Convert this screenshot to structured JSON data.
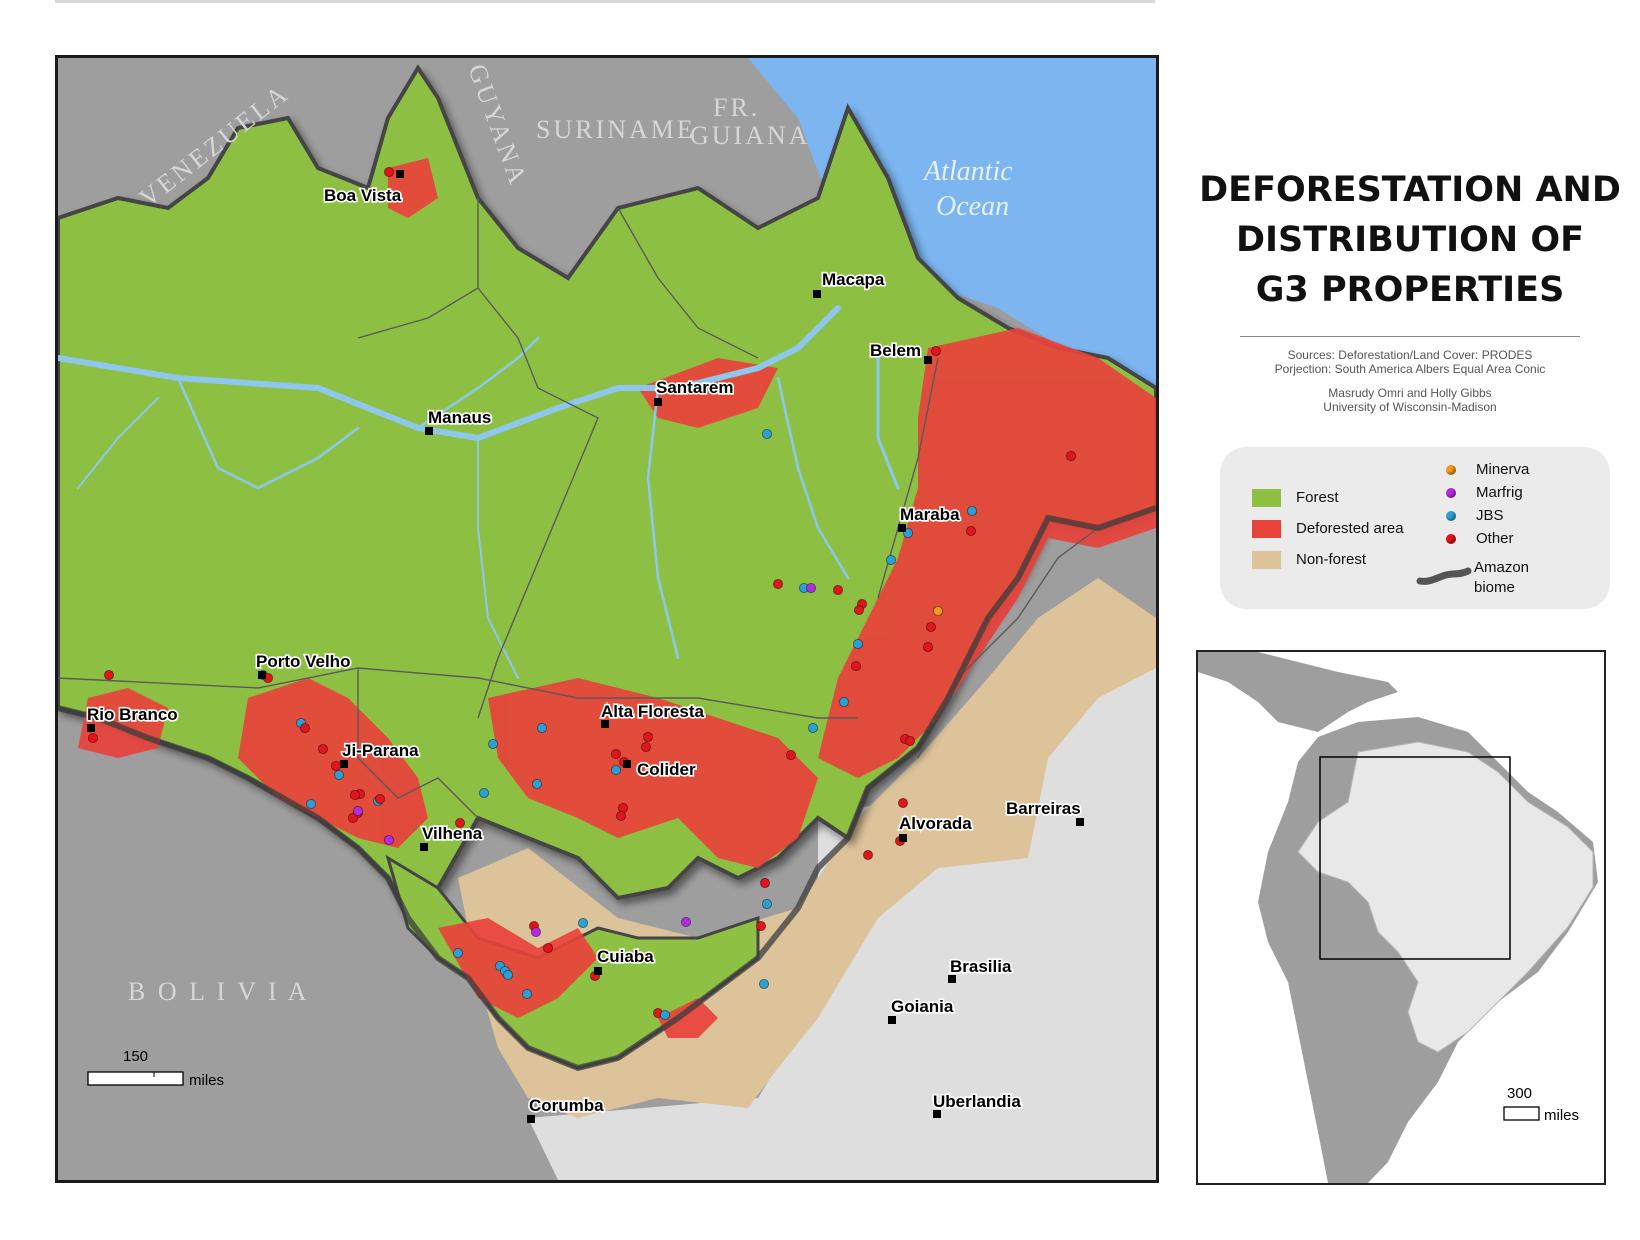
{
  "title": {
    "line1": "DEFORESTATION AND",
    "line2": "DISTRIBUTION OF",
    "line3": "G3 PROPERTIES"
  },
  "credits": {
    "sources": "Sources: Deforestation/Land Cover: PRODES",
    "projection": "Porjection: South America Albers Equal Area Conic",
    "authors": "Masrudy Omri and Holly Gibbs",
    "institution": "University of Wisconsin-Madison"
  },
  "legend": {
    "land_cover": [
      {
        "label": "Forest",
        "color": "#8dc043"
      },
      {
        "label": "Deforested area",
        "color": "#e8423b"
      },
      {
        "label": "Non-forest",
        "color": "#dcc39a"
      }
    ],
    "companies": [
      {
        "label": "Minerva",
        "color": "#f39a1e"
      },
      {
        "label": "Marfrig",
        "color": "#b52ce0"
      },
      {
        "label": "JBS",
        "color": "#2aa0d6"
      },
      {
        "label": "Other",
        "color": "#e2141c"
      }
    ],
    "biome_line1": "Amazon",
    "biome_line2": "biome"
  },
  "countries": {
    "venezuela": "VENEZUELA",
    "guyana": "GUYANA",
    "suriname": "SURINAME",
    "fr_guiana_1": "FR.",
    "fr_guiana_2": "GUIANA",
    "bolivia": "B O L I V I A"
  },
  "ocean": {
    "line1": "Atlantic",
    "line2": "Ocean"
  },
  "cities": [
    {
      "name": "Boa Vista"
    },
    {
      "name": "Macapa"
    },
    {
      "name": "Belem"
    },
    {
      "name": "Santarem"
    },
    {
      "name": "Manaus"
    },
    {
      "name": "Maraba"
    },
    {
      "name": "Porto Velho"
    },
    {
      "name": "Rio Branco"
    },
    {
      "name": "Alta Floresta"
    },
    {
      "name": "Ji-Parana"
    },
    {
      "name": "Colider"
    },
    {
      "name": "Alvorada"
    },
    {
      "name": "Barreiras"
    },
    {
      "name": "Vilhena"
    },
    {
      "name": "Cuiaba"
    },
    {
      "name": "Brasilia"
    },
    {
      "name": "Goiania"
    },
    {
      "name": "Corumba"
    },
    {
      "name": "Uberlandia"
    }
  ],
  "scale_main": {
    "value": "150",
    "unit": "miles"
  },
  "scale_inset": {
    "value": "300",
    "unit": "miles"
  },
  "colors": {
    "forest": "#8dc043",
    "deforested": "#e8423b",
    "non_forest": "#dcc39a",
    "ocean": "#7cb5f0",
    "river": "#8ec7ee",
    "outside_dark": "#9e9e9e",
    "outside_light": "#dedede"
  }
}
